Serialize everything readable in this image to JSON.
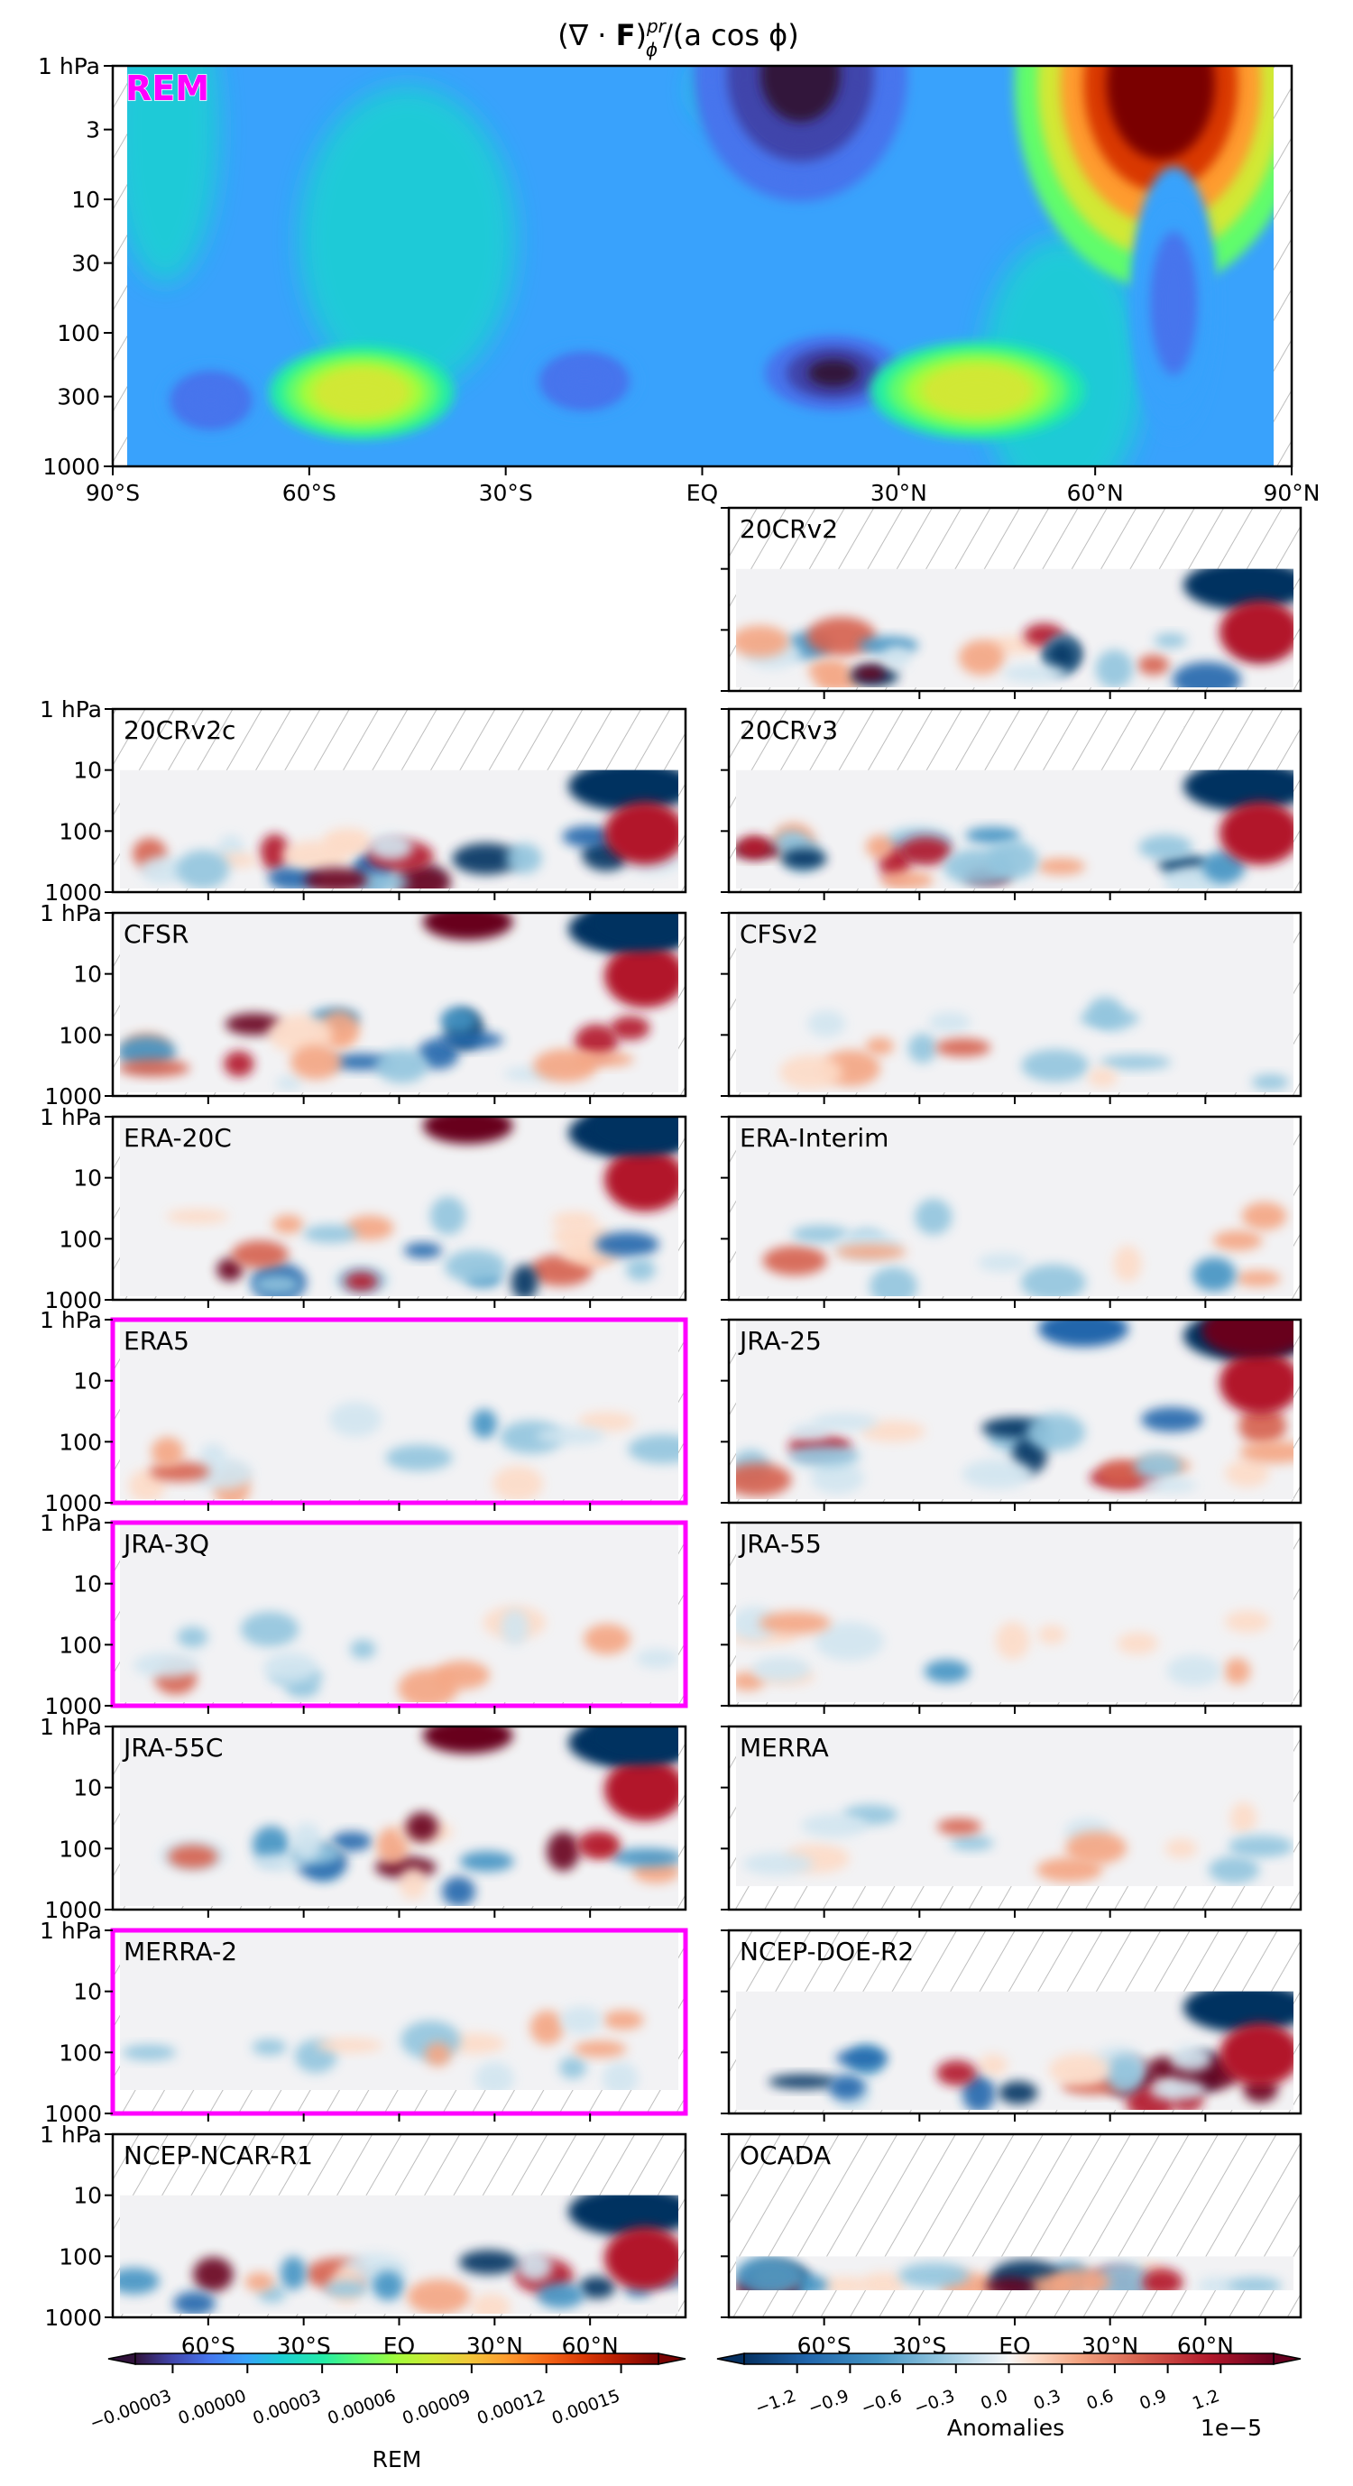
{
  "chart_data": {
    "type": "heatmap",
    "title": "(∇·F)ᵖʳφ / (a cos φ)",
    "title_parts": {
      "base": "(∇ · F)",
      "sup": "pr",
      "sub": "ϕ",
      "rest": "/(a cos ϕ)"
    },
    "xlabel": "",
    "ylabel": "",
    "x_range": [
      -90,
      90
    ],
    "y_range_hPa": [
      1000,
      1
    ],
    "y_scale": "log",
    "main_panel": {
      "name": "REM",
      "highlight_color": "#ff00ff",
      "x_ticks": [
        "90°S",
        "60°S",
        "30°S",
        "EQ",
        "30°N",
        "60°N",
        "90°N"
      ],
      "x_tick_values": [
        -90,
        -60,
        -30,
        0,
        30,
        60,
        90
      ],
      "y_ticks": [
        "1 hPa",
        "3",
        "10",
        "30",
        "100",
        "300",
        "1000"
      ],
      "y_tick_values": [
        1,
        3,
        10,
        30,
        100,
        300,
        1000
      ],
      "features": [
        {
          "lat": 20,
          "p": 200,
          "value": -4.5e-05,
          "desc": "strong negative core, tropical upper troposphere"
        },
        {
          "lat": 15,
          "p": 1,
          "value": -4.5e-05,
          "desc": "strong negative, upper stratosphere low latitudes"
        },
        {
          "lat": 70,
          "p": 1,
          "value": 0.00016,
          "desc": "strong positive, NH polar stratosphere"
        },
        {
          "lat": -52,
          "p": 280,
          "value": 8e-05,
          "desc": "SH midlatitude positive"
        },
        {
          "lat": 42,
          "p": 270,
          "value": 8e-05,
          "desc": "NH midlatitude positive"
        },
        {
          "lat": -75,
          "p": 320,
          "value": -2e-05,
          "desc": "SH polar negative"
        },
        {
          "lat": -18,
          "p": 230,
          "value": -2e-05,
          "desc": "SH subtropical negative"
        },
        {
          "lat": 72,
          "p": 60,
          "value": -1e-05,
          "desc": "NH polar negative column"
        }
      ]
    },
    "panels": [
      {
        "name": "20CRv2",
        "column": "right",
        "top_hPa": 10,
        "highlighted": false
      },
      {
        "name": "20CRv2c",
        "column": "left",
        "top_hPa": 10,
        "highlighted": false
      },
      {
        "name": "20CRv3",
        "column": "right",
        "top_hPa": 10,
        "highlighted": false
      },
      {
        "name": "CFSR",
        "column": "left",
        "top_hPa": 1,
        "highlighted": false
      },
      {
        "name": "CFSv2",
        "column": "right",
        "top_hPa": 1,
        "highlighted": false
      },
      {
        "name": "ERA-20C",
        "column": "left",
        "top_hPa": 1,
        "highlighted": false
      },
      {
        "name": "ERA-Interim",
        "column": "right",
        "top_hPa": 1,
        "highlighted": false
      },
      {
        "name": "ERA5",
        "column": "left",
        "top_hPa": 1,
        "highlighted": true
      },
      {
        "name": "JRA-25",
        "column": "right",
        "top_hPa": 1,
        "highlighted": false
      },
      {
        "name": "JRA-3Q",
        "column": "left",
        "top_hPa": 1,
        "highlighted": true
      },
      {
        "name": "JRA-55",
        "column": "right",
        "top_hPa": 1,
        "highlighted": false
      },
      {
        "name": "JRA-55C",
        "column": "left",
        "top_hPa": 1,
        "highlighted": false
      },
      {
        "name": "MERRA",
        "column": "right",
        "top_hPa": 1,
        "highlighted": false
      },
      {
        "name": "MERRA-2",
        "column": "left",
        "top_hPa": 1,
        "highlighted": true
      },
      {
        "name": "NCEP-DOE-R2",
        "column": "right",
        "top_hPa": 10,
        "highlighted": false
      },
      {
        "name": "NCEP-NCAR-R1",
        "column": "left",
        "top_hPa": 10,
        "highlighted": false
      },
      {
        "name": "OCADA",
        "column": "right",
        "top_hPa": 100,
        "highlighted": false
      }
    ],
    "small_y_ticks": [
      "1 hPa",
      "10",
      "100",
      "1000"
    ],
    "small_y_tick_values": [
      1,
      10,
      100,
      1000
    ],
    "bottom_x_ticks": [
      "60°S",
      "30°S",
      "EQ",
      "30°N",
      "60°N"
    ],
    "bottom_x_tick_values": [
      -60,
      -30,
      0,
      30,
      60
    ],
    "colorbars": [
      {
        "name": "REM",
        "label": "REM",
        "colormap": "turbo",
        "ticks": [
          "−0.00003",
          "0.00000",
          "0.00003",
          "0.00006",
          "0.00009",
          "0.00012",
          "0.00015"
        ],
        "tick_values": [
          -3e-05,
          0.0,
          3e-05,
          6e-05,
          9e-05,
          0.00012,
          0.00015
        ],
        "range": [
          -4.5e-05,
          0.000165
        ],
        "extend": "both"
      },
      {
        "name": "Anomalies",
        "label": "Anomalies",
        "offset_text": "1e−5",
        "colormap": "RdBu_r",
        "ticks": [
          "−1.2",
          "−0.9",
          "−0.6",
          "−0.3",
          "0.0",
          "0.3",
          "0.6",
          "0.9",
          "1.2"
        ],
        "tick_values": [
          -1.2,
          -0.9,
          -0.6,
          -0.3,
          0.0,
          0.3,
          0.6,
          0.9,
          1.2
        ],
        "range": [
          -1.5,
          1.5
        ],
        "extend": "both"
      }
    ]
  }
}
